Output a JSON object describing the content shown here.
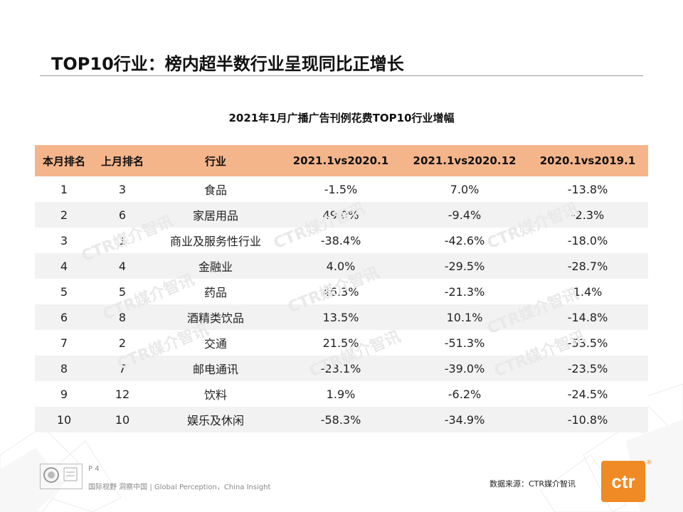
{
  "title": "TOP10行业：榜内超半数行业呈现同比正增长",
  "table_title": "2021年1月广播广告刊例花费TOP10行业增幅",
  "watermark_text": "CTR媒介智讯",
  "columns": [
    "本月排名",
    "上月排名",
    "行业",
    "2021.1vs2020.1",
    "2021.1vs2020.12",
    "2020.1vs2019.1"
  ],
  "rows": [
    [
      "1",
      "3",
      "食品",
      "-1.5%",
      "7.0%",
      "-13.8%"
    ],
    [
      "2",
      "6",
      "家居用品",
      "49.0%",
      "-9.4%",
      "-2.3%"
    ],
    [
      "3",
      "1",
      "商业及服务性行业",
      "-38.4%",
      "-42.6%",
      "-18.0%"
    ],
    [
      "4",
      "4",
      "金融业",
      "4.0%",
      "-29.5%",
      "-28.7%"
    ],
    [
      "5",
      "5",
      "药品",
      "46.3%",
      "-21.3%",
      "1.4%"
    ],
    [
      "6",
      "8",
      "酒精类饮品",
      "13.5%",
      "10.1%",
      "-14.8%"
    ],
    [
      "7",
      "2",
      "交通",
      "21.5%",
      "-51.3%",
      "-53.5%"
    ],
    [
      "8",
      "7",
      "邮电通讯",
      "-23.1%",
      "-39.0%",
      "-23.5%"
    ],
    [
      "9",
      "12",
      "饮料",
      "1.9%",
      "-6.2%",
      "-24.5%"
    ],
    [
      "10",
      "10",
      "娱乐及休闲",
      "-58.3%",
      "-34.9%",
      "-10.8%"
    ]
  ],
  "footer": {
    "page": "P 4",
    "tagline": "国际视野 洞察中国 | Global Perception，China Insight",
    "source": "数据来源：CTR媒介智讯",
    "logo_text": "ctr",
    "reg_mark": "®"
  },
  "colors": {
    "header_bg": "#f5b58a",
    "stripe": "#f2f2f2",
    "brand": "#f08a24"
  }
}
